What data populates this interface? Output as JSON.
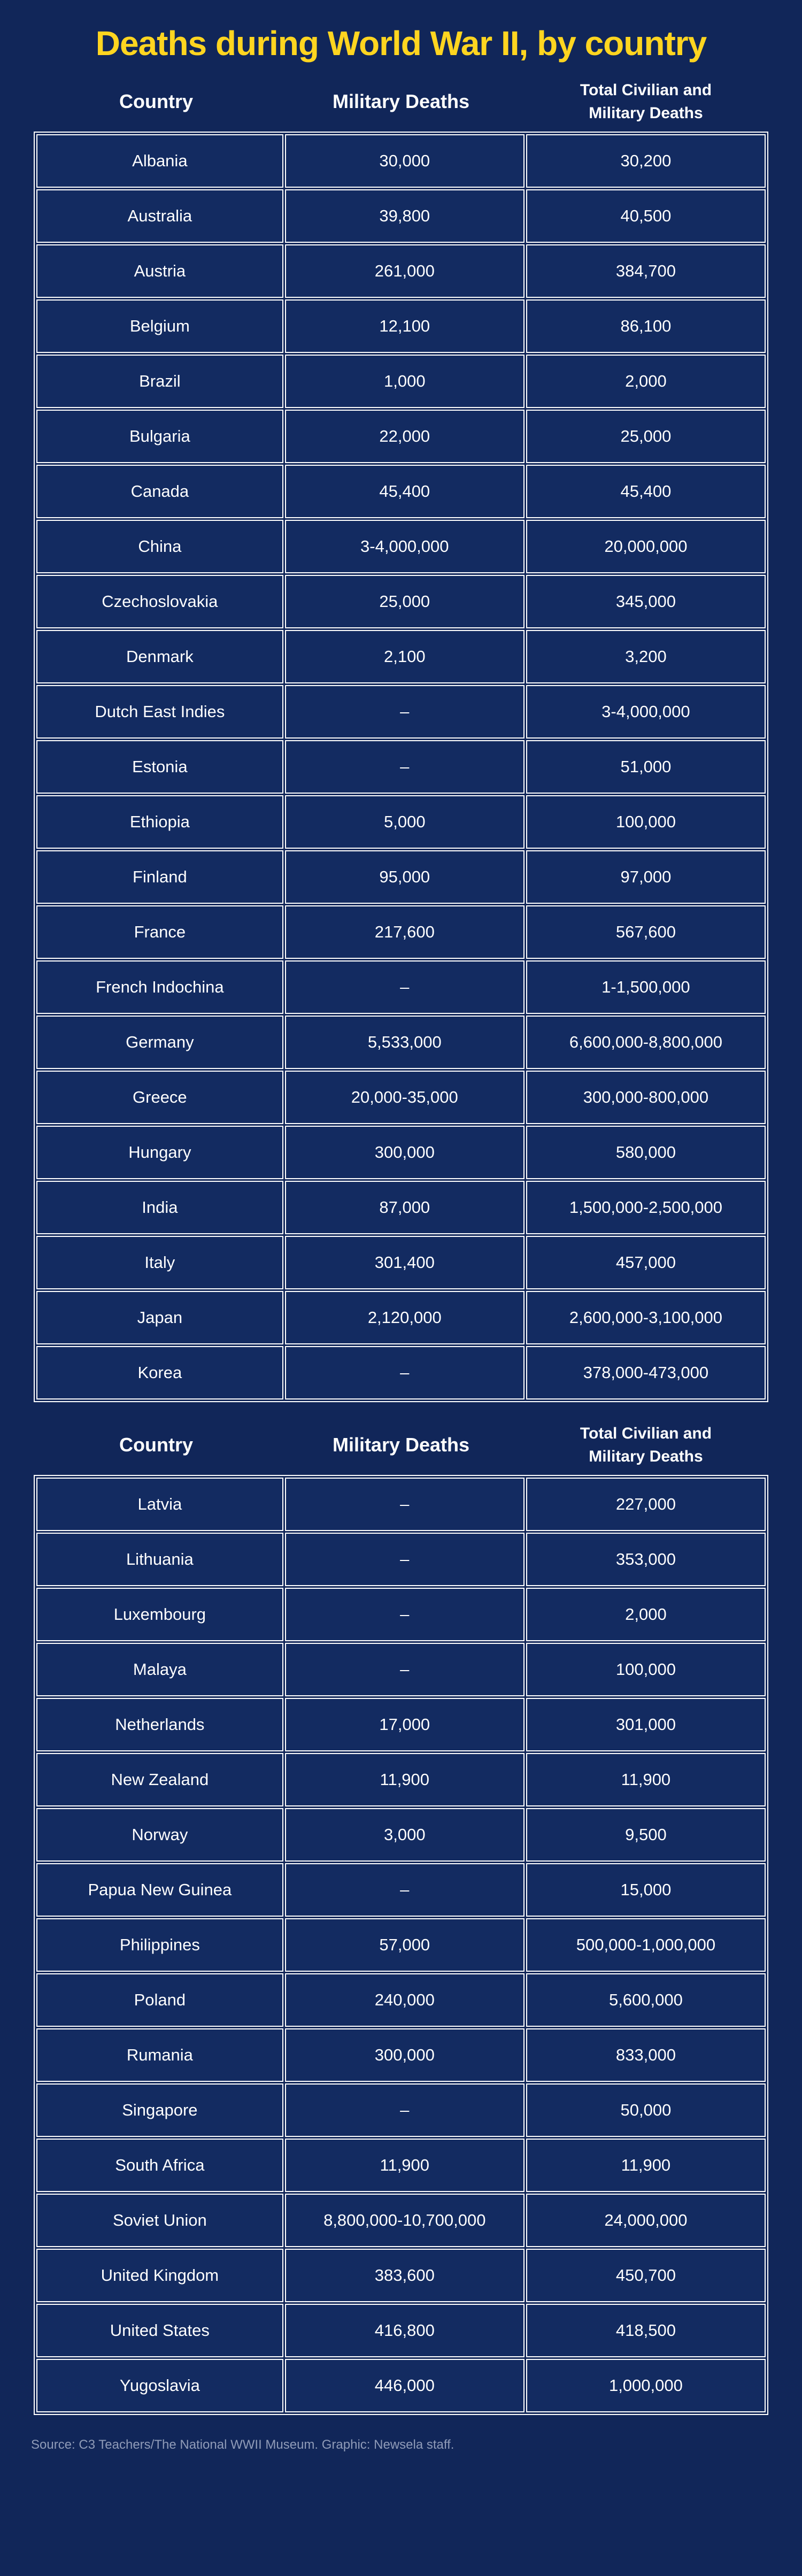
{
  "colors": {
    "background": "#112659",
    "cell_background": "#132b61",
    "grid_border": "#ffffff",
    "title_yellow": "#ffd520",
    "body_text": "#ffffff",
    "source_text": "#8f9bb8"
  },
  "chart_data": {
    "type": "table",
    "title": "Deaths during World War II, by country",
    "columns": [
      "Country",
      "Military Deaths",
      "Total Civilian and Military Deaths"
    ],
    "missing_value_marker": "–",
    "layout": {
      "header_repeated_before_row_index": 23,
      "grid": "white cell borders with background gaps, headers outside grid",
      "column_count": 3
    },
    "rows": [
      {
        "country": "Albania",
        "military": "30,000",
        "total": "30,200"
      },
      {
        "country": "Australia",
        "military": "39,800",
        "total": "40,500"
      },
      {
        "country": "Austria",
        "military": "261,000",
        "total": "384,700"
      },
      {
        "country": "Belgium",
        "military": "12,100",
        "total": "86,100"
      },
      {
        "country": "Brazil",
        "military": "1,000",
        "total": "2,000"
      },
      {
        "country": "Bulgaria",
        "military": "22,000",
        "total": "25,000"
      },
      {
        "country": "Canada",
        "military": "45,400",
        "total": "45,400"
      },
      {
        "country": "China",
        "military": "3-4,000,000",
        "total": "20,000,000"
      },
      {
        "country": "Czechoslovakia",
        "military": "25,000",
        "total": "345,000"
      },
      {
        "country": "Denmark",
        "military": "2,100",
        "total": "3,200"
      },
      {
        "country": "Dutch East Indies",
        "military": "–",
        "total": "3-4,000,000"
      },
      {
        "country": "Estonia",
        "military": "–",
        "total": "51,000"
      },
      {
        "country": "Ethiopia",
        "military": "5,000",
        "total": "100,000"
      },
      {
        "country": "Finland",
        "military": "95,000",
        "total": "97,000"
      },
      {
        "country": "France",
        "military": "217,600",
        "total": "567,600"
      },
      {
        "country": "French Indochina",
        "military": "–",
        "total": "1-1,500,000"
      },
      {
        "country": "Germany",
        "military": "5,533,000",
        "total": "6,600,000-8,800,000"
      },
      {
        "country": "Greece",
        "military": "20,000-35,000",
        "total": "300,000-800,000"
      },
      {
        "country": "Hungary",
        "military": "300,000",
        "total": "580,000"
      },
      {
        "country": "India",
        "military": "87,000",
        "total": "1,500,000-2,500,000"
      },
      {
        "country": "Italy",
        "military": "301,400",
        "total": "457,000"
      },
      {
        "country": "Japan",
        "military": "2,120,000",
        "total": "2,600,000-3,100,000"
      },
      {
        "country": "Korea",
        "military": "–",
        "total": "378,000-473,000"
      },
      {
        "country": "Latvia",
        "military": "–",
        "total": "227,000"
      },
      {
        "country": "Lithuania",
        "military": "–",
        "total": "353,000"
      },
      {
        "country": "Luxembourg",
        "military": "–",
        "total": "2,000"
      },
      {
        "country": "Malaya",
        "military": "–",
        "total": "100,000"
      },
      {
        "country": "Netherlands",
        "military": "17,000",
        "total": "301,000"
      },
      {
        "country": "New Zealand",
        "military": "11,900",
        "total": "11,900"
      },
      {
        "country": "Norway",
        "military": "3,000",
        "total": "9,500"
      },
      {
        "country": "Papua New Guinea",
        "military": "–",
        "total": "15,000"
      },
      {
        "country": "Philippines",
        "military": "57,000",
        "total": "500,000-1,000,000"
      },
      {
        "country": "Poland",
        "military": "240,000",
        "total": "5,600,000"
      },
      {
        "country": "Rumania",
        "military": "300,000",
        "total": "833,000"
      },
      {
        "country": "Singapore",
        "military": "–",
        "total": "50,000"
      },
      {
        "country": "South Africa",
        "military": "11,900",
        "total": "11,900"
      },
      {
        "country": "Soviet Union",
        "military": "8,800,000-10,700,000",
        "total": "24,000,000"
      },
      {
        "country": "United Kingdom",
        "military": "383,600",
        "total": "450,700"
      },
      {
        "country": "United States",
        "military": "416,800",
        "total": "418,500"
      },
      {
        "country": "Yugoslavia",
        "military": "446,000",
        "total": "1,000,000"
      }
    ],
    "source": "Source: C3 Teachers/The National WWII Museum. Graphic: Newsela staff."
  }
}
